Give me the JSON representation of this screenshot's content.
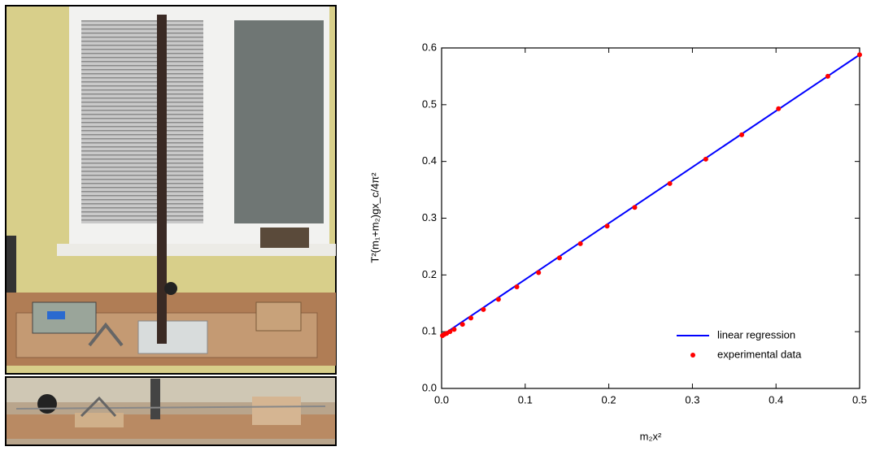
{
  "chart_data": {
    "type": "scatter",
    "x_label": "m₂x²",
    "y_label": "T²(m₁+m₂)gx_c/4π²",
    "xlim": [
      0,
      0.5
    ],
    "ylim": [
      0,
      0.6
    ],
    "xticks": [
      {
        "value": 0,
        "label": "0.0"
      },
      0.1,
      0.2,
      0.3,
      0.4,
      0.5
    ],
    "yticks": [
      {
        "value": 0,
        "label": "0.0"
      },
      0.1,
      0.2,
      0.3,
      0.4,
      0.5,
      0.6
    ],
    "legend": "lower right",
    "series": [
      {
        "name": "linear regression",
        "type": "line",
        "color": "#0000ff",
        "x": [
          0,
          0.5
        ],
        "values": [
          0.093,
          0.588
        ]
      },
      {
        "name": "experimental data",
        "type": "scatter",
        "color": "#ff0000",
        "x": [
          0.001,
          0.003,
          0.006,
          0.01,
          0.015,
          0.025,
          0.035,
          0.05,
          0.068,
          0.09,
          0.116,
          0.141,
          0.166,
          0.198,
          0.231,
          0.273,
          0.316,
          0.359,
          0.403,
          0.462,
          0.5
        ],
        "values": [
          0.093,
          0.095,
          0.097,
          0.1,
          0.104,
          0.113,
          0.124,
          0.139,
          0.157,
          0.179,
          0.204,
          0.23,
          0.255,
          0.286,
          0.319,
          0.361,
          0.404,
          0.447,
          0.493,
          0.55,
          0.588
        ]
      }
    ]
  }
}
